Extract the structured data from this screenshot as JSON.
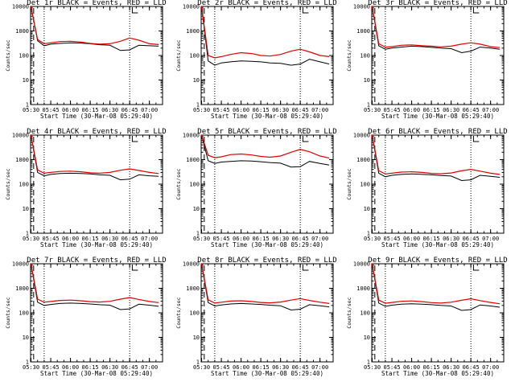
{
  "colors": {
    "events": "#000000",
    "lld": "#e00000",
    "frame": "#000000",
    "background": "#ffffff"
  },
  "x_tick_labels": [
    "05:30",
    "05:45",
    "06:00",
    "06:15",
    "06:30",
    "06:45",
    "07:00"
  ],
  "y_tick_labels": [
    "1",
    "10",
    "100",
    "1000",
    "10000"
  ],
  "y_axis_label": "Counts/sec",
  "x_axis_label": "Start Time (30-Mar-08 05:29:40)",
  "chart_data": [
    {
      "type": "line",
      "title": "Det 1r BLACK = Events, RED = LLD",
      "x_range": [
        "05:29:40",
        "07:10"
      ],
      "ylim": [
        1,
        10000
      ],
      "y_scale": "log",
      "x": [
        "05:30",
        "05:35",
        "05:40",
        "05:45",
        "05:52",
        "06:00",
        "06:08",
        "06:15",
        "06:22",
        "06:30",
        "06:38",
        "06:45",
        "06:52",
        "07:00",
        "07:07"
      ],
      "series": [
        {
          "name": "BLACK = Events",
          "values": [
            10000,
            400,
            250,
            290,
            310,
            330,
            320,
            300,
            275,
            260,
            160,
            170,
            260,
            250,
            240
          ]
        },
        {
          "name": "RED = LLD",
          "values": [
            10000,
            450,
            300,
            330,
            370,
            380,
            350,
            310,
            290,
            300,
            380,
            520,
            420,
            300,
            280
          ]
        }
      ]
    },
    {
      "type": "line",
      "title": "Det 2r BLACK = Events, RED = LLD",
      "x_range": [
        "05:29:40",
        "07:10"
      ],
      "ylim": [
        1,
        10000
      ],
      "y_scale": "log",
      "x": [
        "05:30",
        "05:35",
        "05:40",
        "05:45",
        "05:52",
        "06:00",
        "06:08",
        "06:15",
        "06:22",
        "06:30",
        "06:38",
        "06:45",
        "06:52",
        "07:00",
        "07:07"
      ],
      "series": [
        {
          "name": "BLACK = Events",
          "values": [
            10000,
            60,
            40,
            50,
            55,
            60,
            58,
            55,
            50,
            48,
            40,
            45,
            70,
            55,
            45
          ]
        },
        {
          "name": "RED = LLD",
          "values": [
            10000,
            100,
            80,
            90,
            110,
            130,
            120,
            100,
            95,
            110,
            150,
            180,
            140,
            100,
            90
          ]
        }
      ]
    },
    {
      "type": "line",
      "title": "Det 3r BLACK = Events, RED = LLD",
      "x_range": [
        "05:29:40",
        "07:10"
      ],
      "ylim": [
        1,
        10000
      ],
      "y_scale": "log",
      "x": [
        "05:30",
        "05:35",
        "05:40",
        "05:45",
        "05:52",
        "06:00",
        "06:08",
        "06:15",
        "06:22",
        "06:30",
        "06:38",
        "06:45",
        "06:52",
        "07:00",
        "07:07"
      ],
      "series": [
        {
          "name": "BLACK = Events",
          "values": [
            10000,
            250,
            180,
            200,
            220,
            240,
            230,
            215,
            200,
            190,
            130,
            150,
            220,
            200,
            180
          ]
        },
        {
          "name": "RED = LLD",
          "values": [
            10000,
            300,
            220,
            230,
            260,
            270,
            250,
            240,
            225,
            240,
            290,
            330,
            290,
            230,
            210
          ]
        }
      ]
    },
    {
      "type": "line",
      "title": "Det 4r BLACK = Events, RED = LLD",
      "x_range": [
        "05:29:40",
        "07:10"
      ],
      "ylim": [
        1,
        10000
      ],
      "y_scale": "log",
      "x": [
        "05:30",
        "05:35",
        "05:40",
        "05:45",
        "05:52",
        "06:00",
        "06:08",
        "06:15",
        "06:22",
        "06:30",
        "06:38",
        "06:45",
        "06:52",
        "07:00",
        "07:07"
      ],
      "series": [
        {
          "name": "BLACK = Events",
          "values": [
            10000,
            300,
            220,
            250,
            270,
            280,
            270,
            260,
            240,
            230,
            150,
            160,
            240,
            220,
            210
          ]
        },
        {
          "name": "RED = LLD",
          "values": [
            10000,
            380,
            280,
            300,
            330,
            340,
            320,
            290,
            280,
            300,
            370,
            420,
            360,
            300,
            270
          ]
        }
      ]
    },
    {
      "type": "line",
      "title": "Det 5r BLACK = Events, RED = LLD",
      "x_range": [
        "05:29:40",
        "07:10"
      ],
      "ylim": [
        1,
        10000
      ],
      "y_scale": "log",
      "x": [
        "05:30",
        "05:35",
        "05:40",
        "05:45",
        "05:52",
        "06:00",
        "06:08",
        "06:15",
        "06:22",
        "06:30",
        "06:38",
        "06:45",
        "06:52",
        "07:00",
        "07:07"
      ],
      "series": [
        {
          "name": "BLACK = Events",
          "values": [
            10000,
            900,
            700,
            800,
            850,
            900,
            870,
            820,
            760,
            720,
            500,
            520,
            850,
            700,
            600
          ]
        },
        {
          "name": "RED = LLD",
          "values": [
            10000,
            1500,
            1200,
            1300,
            1600,
            1700,
            1550,
            1350,
            1250,
            1400,
            2000,
            2600,
            2100,
            1400,
            1150
          ]
        }
      ]
    },
    {
      "type": "line",
      "title": "Det 6r BLACK = Events, RED = LLD",
      "x_range": [
        "05:29:40",
        "07:10"
      ],
      "ylim": [
        1,
        10000
      ],
      "y_scale": "log",
      "x": [
        "05:30",
        "05:35",
        "05:40",
        "05:45",
        "05:52",
        "06:00",
        "06:08",
        "06:15",
        "06:22",
        "06:30",
        "06:38",
        "06:45",
        "06:52",
        "07:00",
        "07:07"
      ],
      "series": [
        {
          "name": "BLACK = Events",
          "values": [
            10000,
            280,
            200,
            230,
            250,
            260,
            250,
            240,
            225,
            215,
            140,
            150,
            230,
            210,
            190
          ]
        },
        {
          "name": "RED = LLD",
          "values": [
            10000,
            350,
            260,
            280,
            310,
            320,
            300,
            275,
            265,
            285,
            350,
            400,
            340,
            280,
            250
          ]
        }
      ]
    },
    {
      "type": "line",
      "title": "Det 7r BLACK = Events, RED = LLD",
      "x_range": [
        "05:29:40",
        "07:10"
      ],
      "ylim": [
        1,
        10000
      ],
      "y_scale": "log",
      "x": [
        "05:30",
        "05:35",
        "05:40",
        "05:45",
        "05:52",
        "06:00",
        "06:08",
        "06:15",
        "06:22",
        "06:30",
        "06:38",
        "06:45",
        "06:52",
        "07:00",
        "07:07"
      ],
      "series": [
        {
          "name": "BLACK = Events",
          "values": [
            10000,
            270,
            200,
            220,
            240,
            250,
            240,
            230,
            215,
            205,
            135,
            145,
            225,
            205,
            185
          ]
        },
        {
          "name": "RED = LLD",
          "values": [
            10000,
            360,
            270,
            290,
            320,
            330,
            310,
            285,
            275,
            295,
            360,
            420,
            350,
            290,
            260
          ]
        }
      ]
    },
    {
      "type": "line",
      "title": "Det 8r BLACK = Events, RED = LLD",
      "x_range": [
        "05:29:40",
        "07:10"
      ],
      "ylim": [
        1,
        10000
      ],
      "y_scale": "log",
      "x": [
        "05:30",
        "05:35",
        "05:40",
        "05:45",
        "05:52",
        "06:00",
        "06:08",
        "06:15",
        "06:22",
        "06:30",
        "06:38",
        "06:45",
        "06:52",
        "07:00",
        "07:07"
      ],
      "series": [
        {
          "name": "BLACK = Events",
          "values": [
            10000,
            260,
            190,
            210,
            230,
            240,
            230,
            220,
            205,
            195,
            130,
            140,
            215,
            195,
            175
          ]
        },
        {
          "name": "RED = LLD",
          "values": [
            10000,
            340,
            250,
            270,
            300,
            310,
            290,
            265,
            255,
            275,
            330,
            380,
            320,
            270,
            240
          ]
        }
      ]
    },
    {
      "type": "line",
      "title": "Det 9r BLACK = Events, RED = LLD",
      "x_range": [
        "05:29:40",
        "07:10"
      ],
      "ylim": [
        1,
        10000
      ],
      "y_scale": "log",
      "x": [
        "05:30",
        "05:35",
        "05:40",
        "05:45",
        "05:52",
        "06:00",
        "06:08",
        "06:15",
        "06:22",
        "06:30",
        "06:38",
        "06:45",
        "06:52",
        "07:00",
        "07:07"
      ],
      "series": [
        {
          "name": "BLACK = Events",
          "values": [
            10000,
            250,
            185,
            205,
            225,
            235,
            225,
            215,
            200,
            190,
            125,
            135,
            210,
            190,
            170
          ]
        },
        {
          "name": "RED = LLD",
          "values": [
            10000,
            330,
            245,
            265,
            295,
            305,
            285,
            260,
            250,
            270,
            325,
            375,
            315,
            265,
            235
          ]
        }
      ]
    }
  ]
}
